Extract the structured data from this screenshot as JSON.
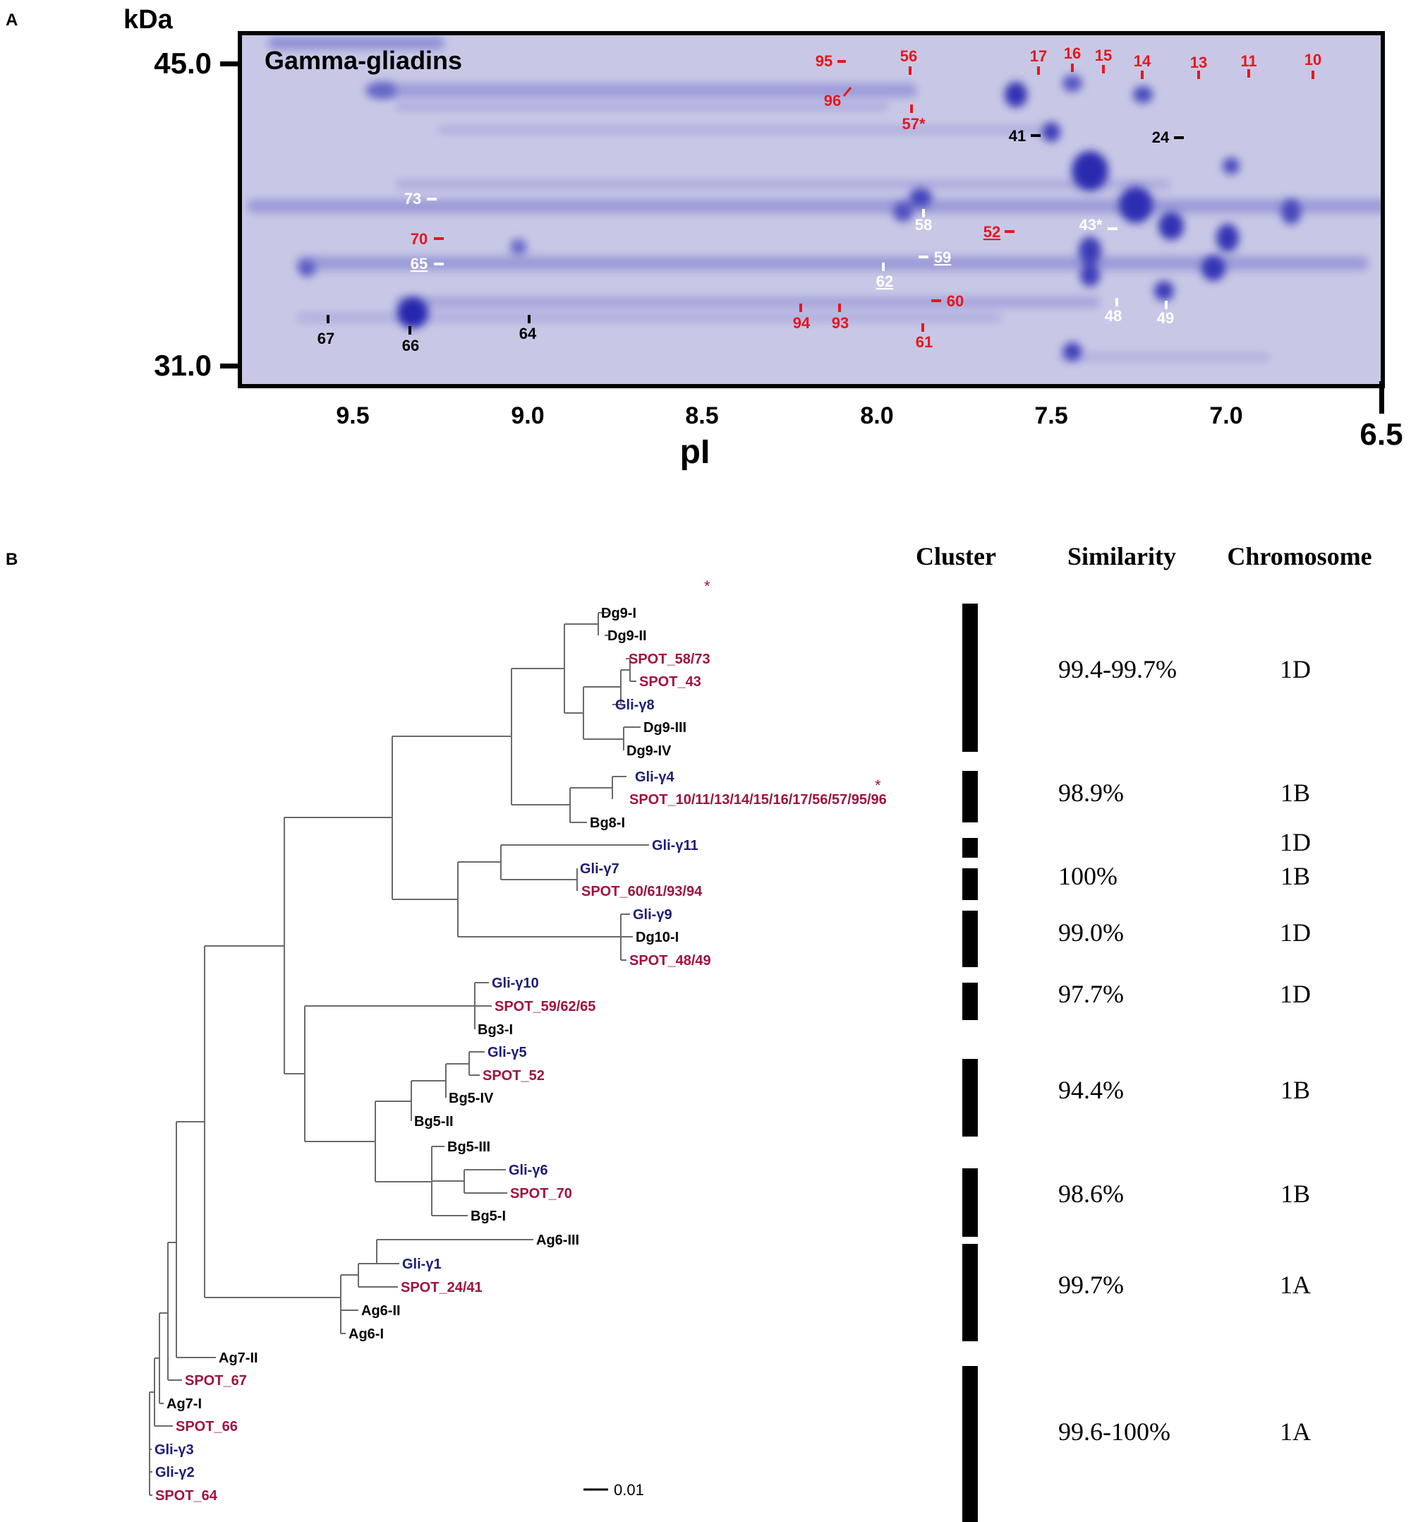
{
  "panel_a": {
    "letter": "A",
    "title": "Gamma-gliadins",
    "y_unit": "kDa",
    "y_ticks": [
      "45.0",
      "31.0"
    ],
    "x_label": "pI",
    "x_ticks": [
      "9.5",
      "9.0",
      "8.5",
      "8.0",
      "7.5",
      "7.0",
      "6.5"
    ],
    "colors": {
      "gel": "#c9c9e8",
      "spot": "#3a3ab8",
      "red": "#e8161b",
      "white": "#ffffff",
      "black": "#000000"
    },
    "spot_labels": [
      {
        "id": "95",
        "color": "red"
      },
      {
        "id": "56",
        "color": "red"
      },
      {
        "id": "17",
        "color": "red"
      },
      {
        "id": "16",
        "color": "red"
      },
      {
        "id": "15",
        "color": "red"
      },
      {
        "id": "14",
        "color": "red"
      },
      {
        "id": "13",
        "color": "red"
      },
      {
        "id": "11",
        "color": "red"
      },
      {
        "id": "10",
        "color": "red"
      },
      {
        "id": "96",
        "color": "red"
      },
      {
        "id": "57*",
        "color": "red"
      },
      {
        "id": "41",
        "color": "black"
      },
      {
        "id": "24",
        "color": "black"
      },
      {
        "id": "73",
        "color": "white"
      },
      {
        "id": "58",
        "color": "white"
      },
      {
        "id": "52",
        "color": "red"
      },
      {
        "id": "43*",
        "color": "white"
      },
      {
        "id": "70",
        "color": "red"
      },
      {
        "id": "65",
        "color": "white"
      },
      {
        "id": "59",
        "color": "white"
      },
      {
        "id": "62",
        "color": "white"
      },
      {
        "id": "60",
        "color": "red"
      },
      {
        "id": "48",
        "color": "white"
      },
      {
        "id": "49",
        "color": "white"
      },
      {
        "id": "67",
        "color": "black"
      },
      {
        "id": "66",
        "color": "black"
      },
      {
        "id": "64",
        "color": "black"
      },
      {
        "id": "94",
        "color": "red"
      },
      {
        "id": "93",
        "color": "red"
      },
      {
        "id": "61",
        "color": "red"
      }
    ]
  },
  "panel_b": {
    "letter": "B",
    "headers": {
      "cluster": "Cluster",
      "similarity": "Similarity",
      "chromosome": "Chromosome"
    },
    "leaves": [
      {
        "label": "Dg9-I",
        "color": "black"
      },
      {
        "label": "Dg9-II",
        "color": "black"
      },
      {
        "label": "SPOT_58/73",
        "color": "maroon"
      },
      {
        "label": "SPOT_43",
        "color": "maroon"
      },
      {
        "label": "Gli-γ8",
        "color": "blue"
      },
      {
        "label": "Dg9-III",
        "color": "black"
      },
      {
        "label": "Dg9-IV",
        "color": "black"
      },
      {
        "label": "Gli-γ4",
        "color": "blue"
      },
      {
        "label": "SPOT_10/11/13/14/15/16/17/56/57/95/96",
        "color": "maroon"
      },
      {
        "label": "Bg8-I",
        "color": "black"
      },
      {
        "label": "Gli-γ11",
        "color": "blue"
      },
      {
        "label": "Gli-γ7",
        "color": "blue"
      },
      {
        "label": "SPOT_60/61/93/94",
        "color": "maroon"
      },
      {
        "label": "Gli-γ9",
        "color": "blue"
      },
      {
        "label": "Dg10-I",
        "color": "black"
      },
      {
        "label": "SPOT_48/49",
        "color": "maroon"
      },
      {
        "label": "Gli-γ10",
        "color": "blue"
      },
      {
        "label": "SPOT_59/62/65",
        "color": "maroon"
      },
      {
        "label": "Bg3-I",
        "color": "black"
      },
      {
        "label": "Gli-γ5",
        "color": "blue"
      },
      {
        "label": "SPOT_52",
        "color": "maroon"
      },
      {
        "label": "Bg5-IV",
        "color": "black"
      },
      {
        "label": "Bg5-II",
        "color": "black"
      },
      {
        "label": "Bg5-III",
        "color": "black"
      },
      {
        "label": "Gli-γ6",
        "color": "blue"
      },
      {
        "label": "SPOT_70",
        "color": "maroon"
      },
      {
        "label": "Bg5-I",
        "color": "black"
      },
      {
        "label": "Ag6-III",
        "color": "black"
      },
      {
        "label": "Gli-γ1",
        "color": "blue"
      },
      {
        "label": "SPOT_24/41",
        "color": "maroon"
      },
      {
        "label": "Ag6-II",
        "color": "black"
      },
      {
        "label": "Ag6-I",
        "color": "black"
      },
      {
        "label": "Ag7-II",
        "color": "black"
      },
      {
        "label": "SPOT_67",
        "color": "maroon"
      },
      {
        "label": "Ag7-I",
        "color": "black"
      },
      {
        "label": "SPOT_66",
        "color": "maroon"
      },
      {
        "label": "Gli-γ3",
        "color": "blue"
      },
      {
        "label": "Gli-γ2",
        "color": "blue"
      },
      {
        "label": "SPOT_64",
        "color": "maroon"
      }
    ],
    "asterisk": "*",
    "scale_bar": "0.01",
    "clusters": [
      {
        "similarity": "99.4-99.7%",
        "chromosome": "1D"
      },
      {
        "similarity": "98.9%",
        "chromosome": "1B"
      },
      {
        "similarity": "",
        "chromosome": "1D"
      },
      {
        "similarity": "100%",
        "chromosome": "1B"
      },
      {
        "similarity": "99.0%",
        "chromosome": "1D"
      },
      {
        "similarity": "97.7%",
        "chromosome": "1D"
      },
      {
        "similarity": "94.4%",
        "chromosome": "1B"
      },
      {
        "similarity": "98.6%",
        "chromosome": "1B"
      },
      {
        "similarity": "99.7%",
        "chromosome": "1A"
      },
      {
        "similarity": "99.6-100%",
        "chromosome": "1A"
      }
    ],
    "colors": {
      "black": "#000000",
      "blue": "#1c1c78",
      "maroon": "#a0123e"
    }
  }
}
